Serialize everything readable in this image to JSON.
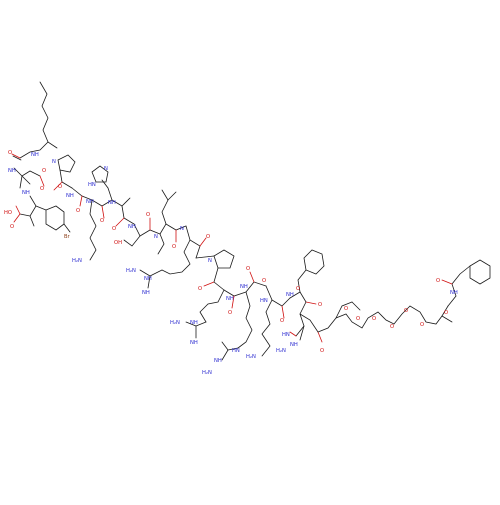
{
  "molecule": {
    "element_colors": {
      "carbon": "#1a1a1a",
      "oxygen": "#d01010",
      "nitrogen": "#2a2ad0",
      "bromine": "#8a3a12",
      "background": "#ffffff"
    },
    "atom_labels": [
      {
        "id": "o1",
        "text": "O",
        "el": "o"
      },
      {
        "id": "nh1",
        "text": "NH",
        "el": "n"
      },
      {
        "id": "nh2",
        "text": "NH",
        "el": "n"
      },
      {
        "id": "o2",
        "text": "O",
        "el": "o"
      },
      {
        "id": "o3",
        "text": "O",
        "el": "o"
      },
      {
        "id": "n1",
        "text": "N",
        "el": "n"
      },
      {
        "id": "o4",
        "text": "O",
        "el": "o"
      },
      {
        "id": "nh3",
        "text": "NH",
        "el": "n"
      },
      {
        "id": "nh4",
        "text": "NH",
        "el": "n"
      },
      {
        "id": "ho1",
        "text": "HO",
        "el": "o"
      },
      {
        "id": "o5",
        "text": "O",
        "el": "o"
      },
      {
        "id": "br1",
        "text": "Br",
        "el": "br"
      },
      {
        "id": "nh5",
        "text": "NH",
        "el": "n"
      },
      {
        "id": "o6",
        "text": "O",
        "el": "o"
      },
      {
        "id": "hn1",
        "text": "HN",
        "el": "n"
      },
      {
        "id": "n2",
        "text": "N",
        "el": "n"
      },
      {
        "id": "h2n1",
        "text": "H₂N",
        "el": "n"
      },
      {
        "id": "nh6",
        "text": "NH",
        "el": "n"
      },
      {
        "id": "o7",
        "text": "O",
        "el": "o"
      },
      {
        "id": "o8",
        "text": "O",
        "el": "o"
      },
      {
        "id": "oh1",
        "text": "OH",
        "el": "o"
      },
      {
        "id": "nh7",
        "text": "NH",
        "el": "n"
      },
      {
        "id": "n3",
        "text": "N",
        "el": "n"
      },
      {
        "id": "o9",
        "text": "O",
        "el": "o"
      },
      {
        "id": "nh8",
        "text": "NH",
        "el": "n"
      },
      {
        "id": "h2n2",
        "text": "H₂N",
        "el": "n"
      },
      {
        "id": "nh9",
        "text": "NH",
        "el": "n"
      },
      {
        "id": "o10",
        "text": "O",
        "el": "o"
      },
      {
        "id": "n4",
        "text": "N",
        "el": "n"
      },
      {
        "id": "o11",
        "text": "O",
        "el": "o"
      },
      {
        "id": "n5",
        "text": "N",
        "el": "n"
      },
      {
        "id": "o12",
        "text": "O",
        "el": "o"
      },
      {
        "id": "nh10",
        "text": "NH",
        "el": "n"
      },
      {
        "id": "o13",
        "text": "O",
        "el": "o"
      },
      {
        "id": "nh11",
        "text": "NH",
        "el": "n"
      },
      {
        "id": "h2n3",
        "text": "H₂N",
        "el": "n"
      },
      {
        "id": "nh12",
        "text": "NH",
        "el": "n"
      },
      {
        "id": "o14",
        "text": "O",
        "el": "o"
      },
      {
        "id": "nh13",
        "text": "NH",
        "el": "n"
      },
      {
        "id": "o15",
        "text": "O",
        "el": "o"
      },
      {
        "id": "hn2",
        "text": "HN",
        "el": "n"
      },
      {
        "id": "hn3",
        "text": "HN",
        "el": "n"
      },
      {
        "id": "o16",
        "text": "O",
        "el": "o"
      },
      {
        "id": "nh14",
        "text": "NH",
        "el": "n"
      },
      {
        "id": "o17",
        "text": "O",
        "el": "o"
      },
      {
        "id": "hn4",
        "text": "HN",
        "el": "n"
      },
      {
        "id": "h2n4",
        "text": "H₂N",
        "el": "n"
      },
      {
        "id": "nh15",
        "text": "NH",
        "el": "n"
      },
      {
        "id": "h2n5",
        "text": "H₂N",
        "el": "n"
      },
      {
        "id": "nh16",
        "text": "NH",
        "el": "n"
      },
      {
        "id": "h2n6",
        "text": "H₂N",
        "el": "n"
      },
      {
        "id": "o18",
        "text": "O",
        "el": "o"
      },
      {
        "id": "o19",
        "text": "O",
        "el": "o"
      },
      {
        "id": "o20",
        "text": "O",
        "el": "o"
      },
      {
        "id": "o21",
        "text": "O",
        "el": "o"
      },
      {
        "id": "o22",
        "text": "O",
        "el": "o"
      },
      {
        "id": "o23",
        "text": "O",
        "el": "o"
      },
      {
        "id": "o24",
        "text": "O",
        "el": "o"
      },
      {
        "id": "o25",
        "text": "O",
        "el": "o"
      },
      {
        "id": "o26",
        "text": "O",
        "el": "o"
      },
      {
        "id": "nh17",
        "text": "NH",
        "el": "n"
      },
      {
        "id": "o27",
        "text": "O",
        "el": "o"
      }
    ]
  }
}
